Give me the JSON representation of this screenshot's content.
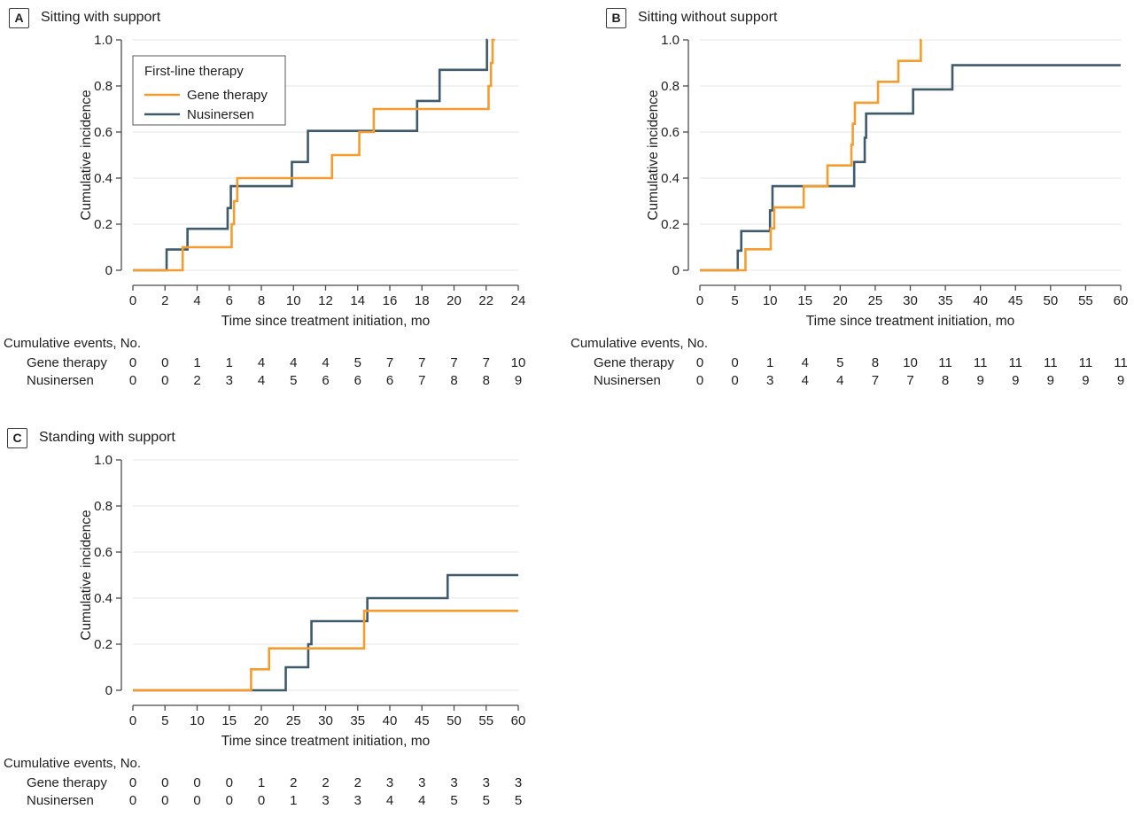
{
  "figure": {
    "background": "#FFFFFF"
  },
  "colors": {
    "gene_therapy": "#F59C2E",
    "nusinersen": "#3E5A6B",
    "grid": "#E5E5E5",
    "axis": "#4A4A4A",
    "text": "#1E1E1E"
  },
  "legend": {
    "title": "First-line therapy",
    "items": [
      {
        "label": "Gene therapy",
        "color": "#F59C2E"
      },
      {
        "label": "Nusinersen",
        "color": "#3E5A6B"
      }
    ]
  },
  "chart_data": [
    {
      "type": "line",
      "style": "step",
      "panel_label": "A",
      "title": "Sitting with support",
      "xlabel": "Time since treatment initiation, mo",
      "ylabel": "Cumulative incidence",
      "xlim": [
        0,
        24
      ],
      "ylim": [
        0,
        1.0
      ],
      "x_ticks": [
        0,
        2,
        4,
        6,
        8,
        10,
        12,
        14,
        16,
        18,
        20,
        22,
        24
      ],
      "y_ticks": [
        0,
        0.2,
        0.4,
        0.6,
        0.8,
        1.0
      ],
      "y_tick_labels": [
        "0",
        "0.2",
        "0.4",
        "0.6",
        "0.8",
        "1.0"
      ],
      "grid": true,
      "show_legend": true,
      "legend_position": "upper left inside",
      "series": [
        {
          "name": "Gene therapy",
          "color": "#F59C2E",
          "x_end": 22.55,
          "steps": [
            [
              3.1,
              0.1
            ],
            [
              6.15,
              0.2
            ],
            [
              6.3,
              0.3
            ],
            [
              6.5,
              0.4
            ],
            [
              12.4,
              0.5
            ],
            [
              14.1,
              0.6
            ],
            [
              15,
              0.7
            ],
            [
              22.15,
              0.8
            ],
            [
              22.3,
              0.9
            ],
            [
              22.4,
              1.0
            ]
          ]
        },
        {
          "name": "Nusinersen",
          "color": "#3E5A6B",
          "x_end": 22.1,
          "steps": [
            [
              2.1,
              0.09
            ],
            [
              3.4,
              0.18
            ],
            [
              5.9,
              0.27
            ],
            [
              6.1,
              0.365
            ],
            [
              9.9,
              0.47
            ],
            [
              10.9,
              0.605
            ],
            [
              17.7,
              0.735
            ],
            [
              19.1,
              0.87
            ],
            [
              22.05,
              1.0
            ]
          ]
        }
      ],
      "events_table": {
        "title": "Cumulative events, No.",
        "rows": [
          {
            "label": "Gene therapy",
            "values": [
              0,
              0,
              1,
              1,
              4,
              4,
              4,
              5,
              7,
              7,
              7,
              7,
              10
            ]
          },
          {
            "label": "Nusinersen",
            "values": [
              0,
              0,
              2,
              3,
              4,
              5,
              6,
              6,
              6,
              7,
              8,
              8,
              9
            ]
          }
        ]
      }
    },
    {
      "type": "line",
      "style": "step",
      "panel_label": "B",
      "title": "Sitting without support",
      "xlabel": "Time since treatment initiation, mo",
      "ylabel": "Cumulative incidence",
      "xlim": [
        0,
        60
      ],
      "ylim": [
        0,
        1.0
      ],
      "x_ticks": [
        0,
        5,
        10,
        15,
        20,
        25,
        30,
        35,
        40,
        45,
        50,
        55,
        60
      ],
      "y_ticks": [
        0,
        0.2,
        0.4,
        0.6,
        0.8,
        1.0
      ],
      "y_tick_labels": [
        "0",
        "0.2",
        "0.4",
        "0.6",
        "0.8",
        "1.0"
      ],
      "grid": true,
      "show_legend": false,
      "series": [
        {
          "name": "Gene therapy",
          "color": "#F59C2E",
          "x_end": 31.6,
          "steps": [
            [
              6.5,
              0.091
            ],
            [
              10.1,
              0.182
            ],
            [
              10.6,
              0.273
            ],
            [
              14.8,
              0.364
            ],
            [
              18.2,
              0.455
            ],
            [
              21.6,
              0.545
            ],
            [
              21.8,
              0.636
            ],
            [
              22.1,
              0.727
            ],
            [
              25.4,
              0.818
            ],
            [
              28.3,
              0.909
            ],
            [
              31.5,
              1.0
            ]
          ]
        },
        {
          "name": "Nusinersen",
          "color": "#3E5A6B",
          "x_end": 60,
          "steps": [
            [
              5.4,
              0.085
            ],
            [
              5.9,
              0.17
            ],
            [
              10,
              0.26
            ],
            [
              10.35,
              0.365
            ],
            [
              22,
              0.47
            ],
            [
              23.5,
              0.575
            ],
            [
              23.7,
              0.68
            ],
            [
              30.4,
              0.785
            ],
            [
              36,
              0.89
            ]
          ]
        }
      ],
      "events_table": {
        "title": "Cumulative events, No.",
        "rows": [
          {
            "label": "Gene therapy",
            "values": [
              0,
              0,
              1,
              4,
              5,
              8,
              10,
              11,
              11,
              11,
              11,
              11,
              11
            ]
          },
          {
            "label": "Nusinersen",
            "values": [
              0,
              0,
              3,
              4,
              4,
              7,
              7,
              8,
              9,
              9,
              9,
              9,
              9
            ]
          }
        ]
      }
    },
    {
      "type": "line",
      "style": "step",
      "panel_label": "C",
      "title": "Standing with support",
      "xlabel": "Time since treatment initiation, mo",
      "ylabel": "Cumulative incidence",
      "xlim": [
        0,
        60
      ],
      "ylim": [
        0,
        1.0
      ],
      "x_ticks": [
        0,
        5,
        10,
        15,
        20,
        25,
        30,
        35,
        40,
        45,
        50,
        55,
        60
      ],
      "y_ticks": [
        0,
        0.2,
        0.4,
        0.6,
        0.8,
        1.0
      ],
      "y_tick_labels": [
        "0",
        "0.2",
        "0.4",
        "0.6",
        "0.8",
        "1.0"
      ],
      "grid": true,
      "show_legend": false,
      "series": [
        {
          "name": "Gene therapy",
          "color": "#F59C2E",
          "x_end": 60,
          "steps": [
            [
              18.4,
              0.091
            ],
            [
              21.2,
              0.182
            ],
            [
              36,
              0.345
            ]
          ]
        },
        {
          "name": "Nusinersen",
          "color": "#3E5A6B",
          "x_end": 60,
          "steps": [
            [
              23.8,
              0.1
            ],
            [
              27.3,
              0.2
            ],
            [
              27.8,
              0.3
            ],
            [
              36.5,
              0.4
            ],
            [
              49,
              0.5
            ]
          ]
        }
      ],
      "events_table": {
        "title": "Cumulative events, No.",
        "rows": [
          {
            "label": "Gene therapy",
            "values": [
              0,
              0,
              0,
              0,
              1,
              2,
              2,
              2,
              3,
              3,
              3,
              3,
              3
            ]
          },
          {
            "label": "Nusinersen",
            "values": [
              0,
              0,
              0,
              0,
              0,
              1,
              3,
              3,
              4,
              4,
              5,
              5,
              5
            ]
          }
        ]
      }
    }
  ]
}
